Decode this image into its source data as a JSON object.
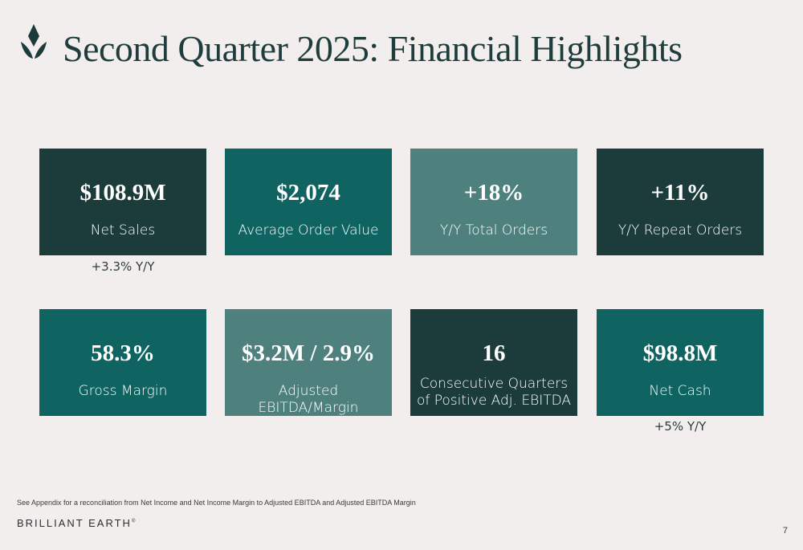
{
  "header": {
    "title": "Second Quarter 2025: Financial Highlights",
    "logo_icon": "brilliant-earth-leaf-icon"
  },
  "colors": {
    "dark": "#1b3c3b",
    "teal": "#0f6462",
    "light": "#4e817e",
    "background": "#f3eeee"
  },
  "row1": [
    {
      "value": "$108.9M",
      "label": "Net Sales",
      "sub": "+3.3% Y/Y"
    },
    {
      "value": "$2,074",
      "label": "Average Order Value"
    },
    {
      "value": "+18%",
      "label": "Y/Y Total Orders"
    },
    {
      "value": "+11%",
      "label": "Y/Y Repeat Orders"
    }
  ],
  "row2": [
    {
      "value": "58.3%",
      "label": "Gross Margin"
    },
    {
      "value": "$3.2M / 2.9%",
      "label": "Adjusted EBITDA/Margin"
    },
    {
      "value": "16",
      "label": "Consecutive Quarters of Positive Adj. EBITDA"
    },
    {
      "value": "$98.8M",
      "label": "Net Cash",
      "sub": "+5% Y/Y"
    }
  ],
  "footer": {
    "footnote": "See Appendix for a reconciliation from Net Income and Net Income Margin to Adjusted EBITDA and Adjusted EBITDA Margin",
    "brand": "BRILLIANT EARTH",
    "brand_mark": "®",
    "page_number": "7"
  }
}
